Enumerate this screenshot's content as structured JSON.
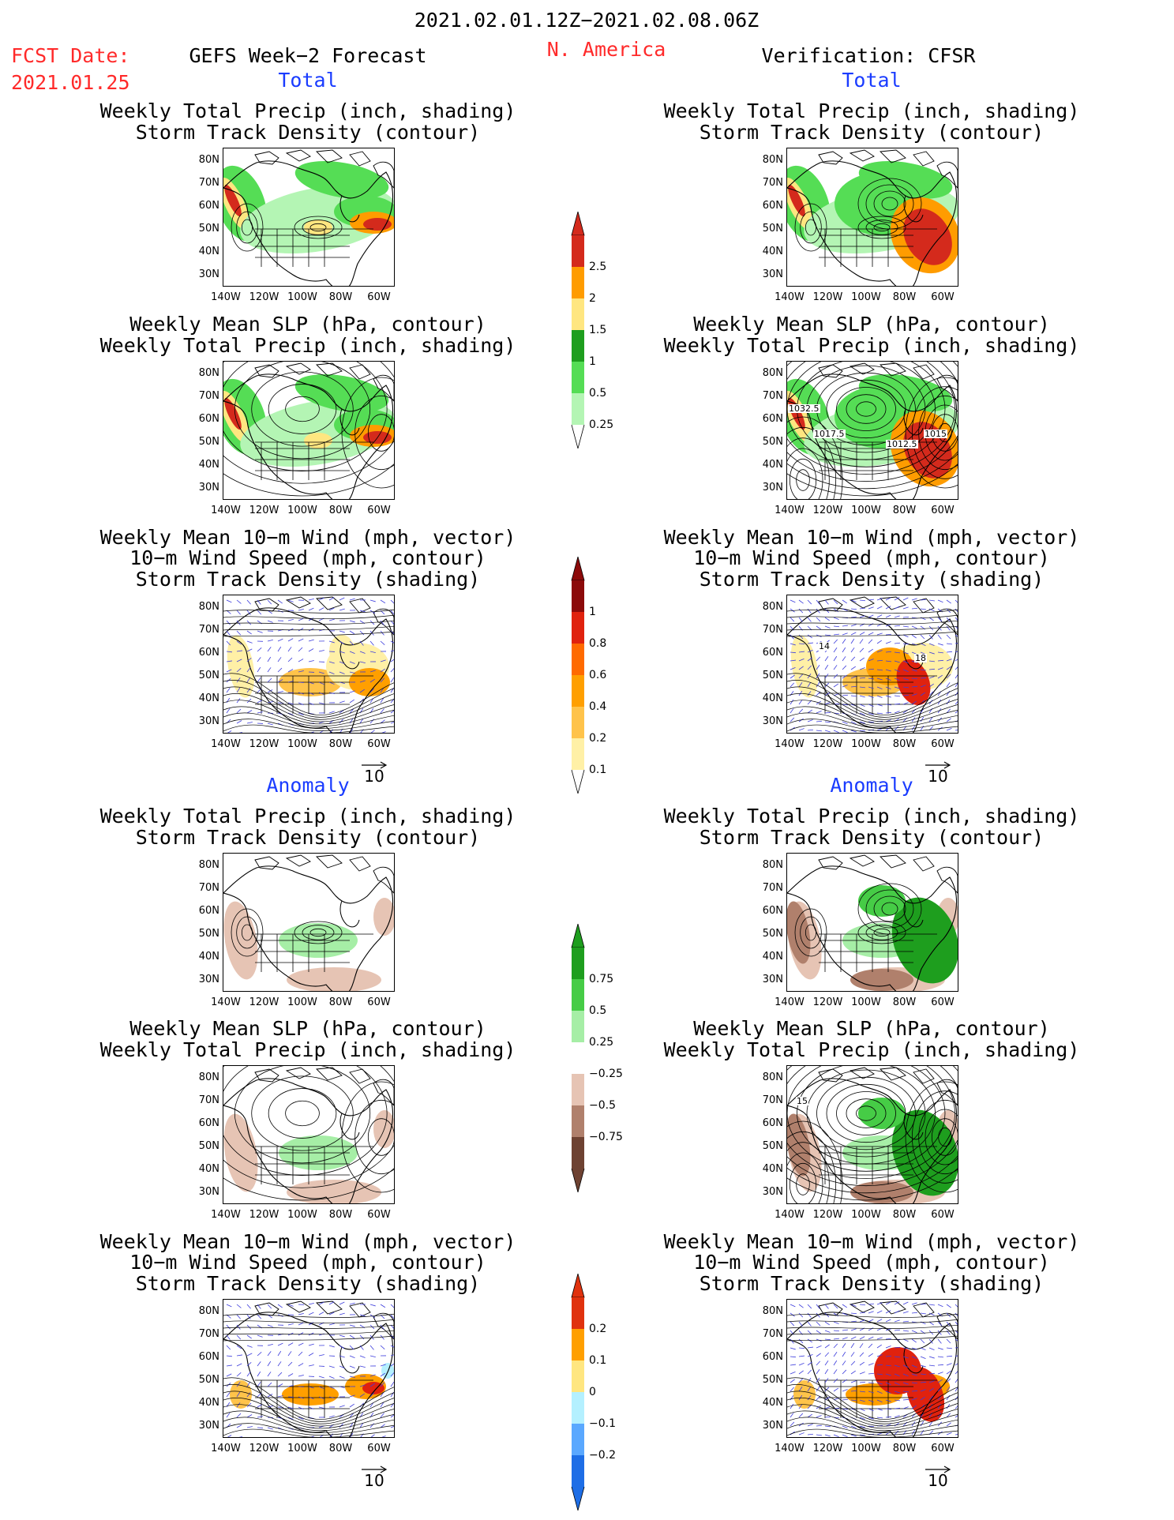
{
  "header": {
    "date_range": "2021.02.01.12Z−2021.02.08.06Z",
    "fcst_label": "FCST Date:",
    "fcst_date": "2021.01.25",
    "left_title": "GEFS Week−2 Forecast",
    "region": "N. America",
    "right_title": "Verification: CFSR"
  },
  "sections": {
    "total_label": "Total",
    "anomaly_label": "Anomaly"
  },
  "panel_titles": {
    "precip_track": [
      "Weekly Total Precip (inch, shading)",
      "Storm Track Density (contour)"
    ],
    "slp_precip": [
      "Weekly Mean SLP (hPa, contour)",
      "Weekly Total Precip (inch, shading)"
    ],
    "wind_track": [
      "Weekly Mean 10−m Wind (mph, vector)",
      "10−m Wind Speed (mph, contour)",
      "Storm Track Density (shading)"
    ]
  },
  "axes": {
    "lat_labels": [
      "80N",
      "70N",
      "60N",
      "50N",
      "40N",
      "30N"
    ],
    "lon_labels": [
      "140W",
      "120W",
      "100W",
      "80W",
      "60W"
    ]
  },
  "vector_ref": "10",
  "contour_labels": [
    "1032.5",
    "1017.5",
    "1012.5",
    "1015",
    "15",
    "14",
    "18"
  ],
  "colorbars": [
    {
      "name": "precip-total",
      "labels": [
        "2.5",
        "2",
        "1.5",
        "1",
        "0.5",
        "0.25"
      ],
      "colors": [
        "#d42a1c",
        "#ff9c00",
        "#ffe680",
        "#1e9e1e",
        "#55dd55",
        "#b4f5b4"
      ]
    },
    {
      "name": "track-total",
      "labels": [
        "1",
        "0.8",
        "0.6",
        "0.4",
        "0.2",
        "0.1"
      ],
      "colors": [
        "#8c0a0a",
        "#e0220e",
        "#ff6a00",
        "#ff9f00",
        "#ffc34a",
        "#fff0a6"
      ]
    },
    {
      "name": "precip-anom",
      "labels": [
        "0.75",
        "0.5",
        "0.25",
        "−0.25",
        "−0.5",
        "−0.75"
      ],
      "colors": [
        "#1e9e1e",
        "#46cc46",
        "#a6eea6",
        "#ffffff",
        "#e6c4b4",
        "#b0806c",
        "#6e4232"
      ]
    },
    {
      "name": "track-anom",
      "labels": [
        "0.2",
        "0.1",
        "0",
        "−0.1",
        "−0.2"
      ],
      "colors": [
        "#e0320e",
        "#ff9f00",
        "#ffe680",
        "#b4f0ff",
        "#5aa8ff",
        "#1e6ee6"
      ]
    }
  ]
}
